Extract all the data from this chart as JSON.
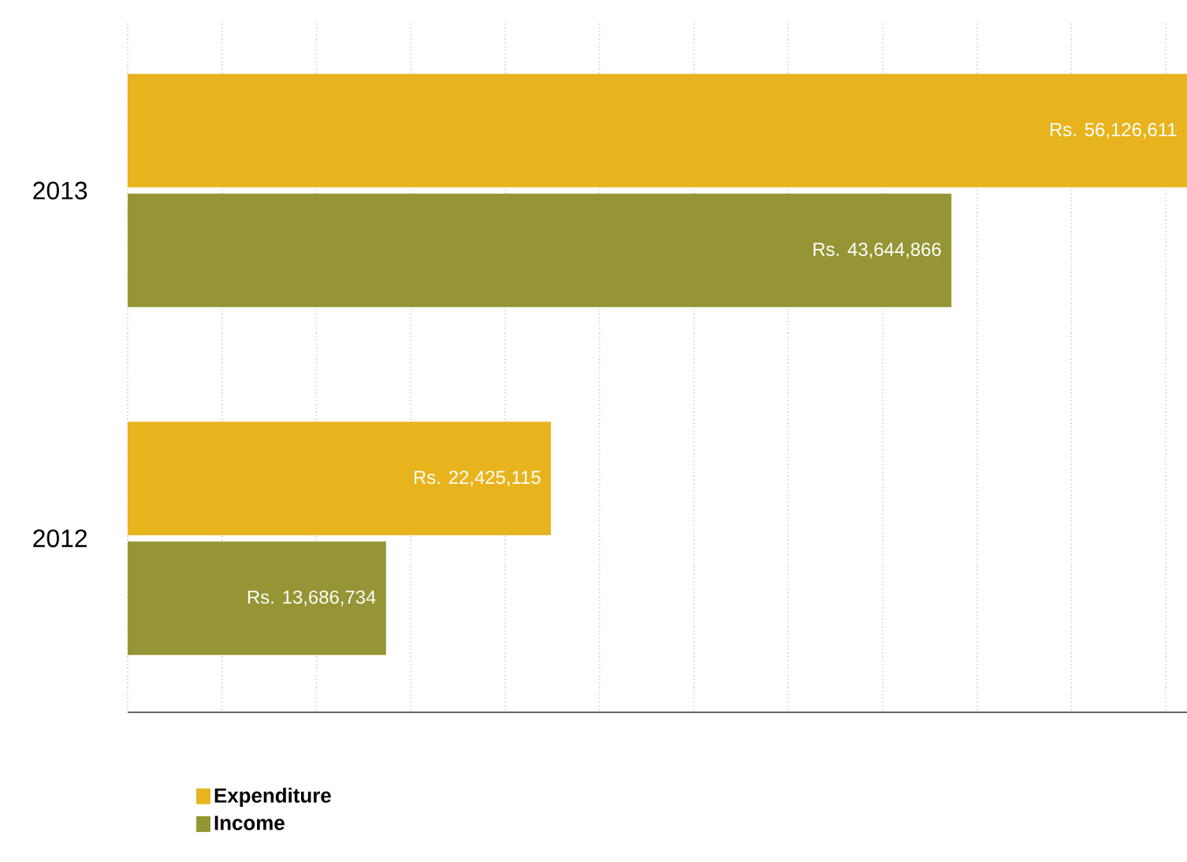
{
  "chart_data": {
    "type": "bar",
    "orientation": "horizontal",
    "categories": [
      "2013",
      "2012"
    ],
    "series": [
      {
        "name": "Expenditure",
        "color": "#e8b41e",
        "values": [
          56126611,
          22425115
        ],
        "value_labels": [
          "Rs. 56,126,611",
          "Rs. 22,425,115"
        ]
      },
      {
        "name": "Income",
        "color": "#959535",
        "values": [
          43644866,
          13686734
        ],
        "value_labels": [
          "Rs. 43,644,866",
          "Rs. 13,686,734"
        ]
      }
    ],
    "tick_labels": "y",
    "grid": "x",
    "legend": "bottom"
  }
}
